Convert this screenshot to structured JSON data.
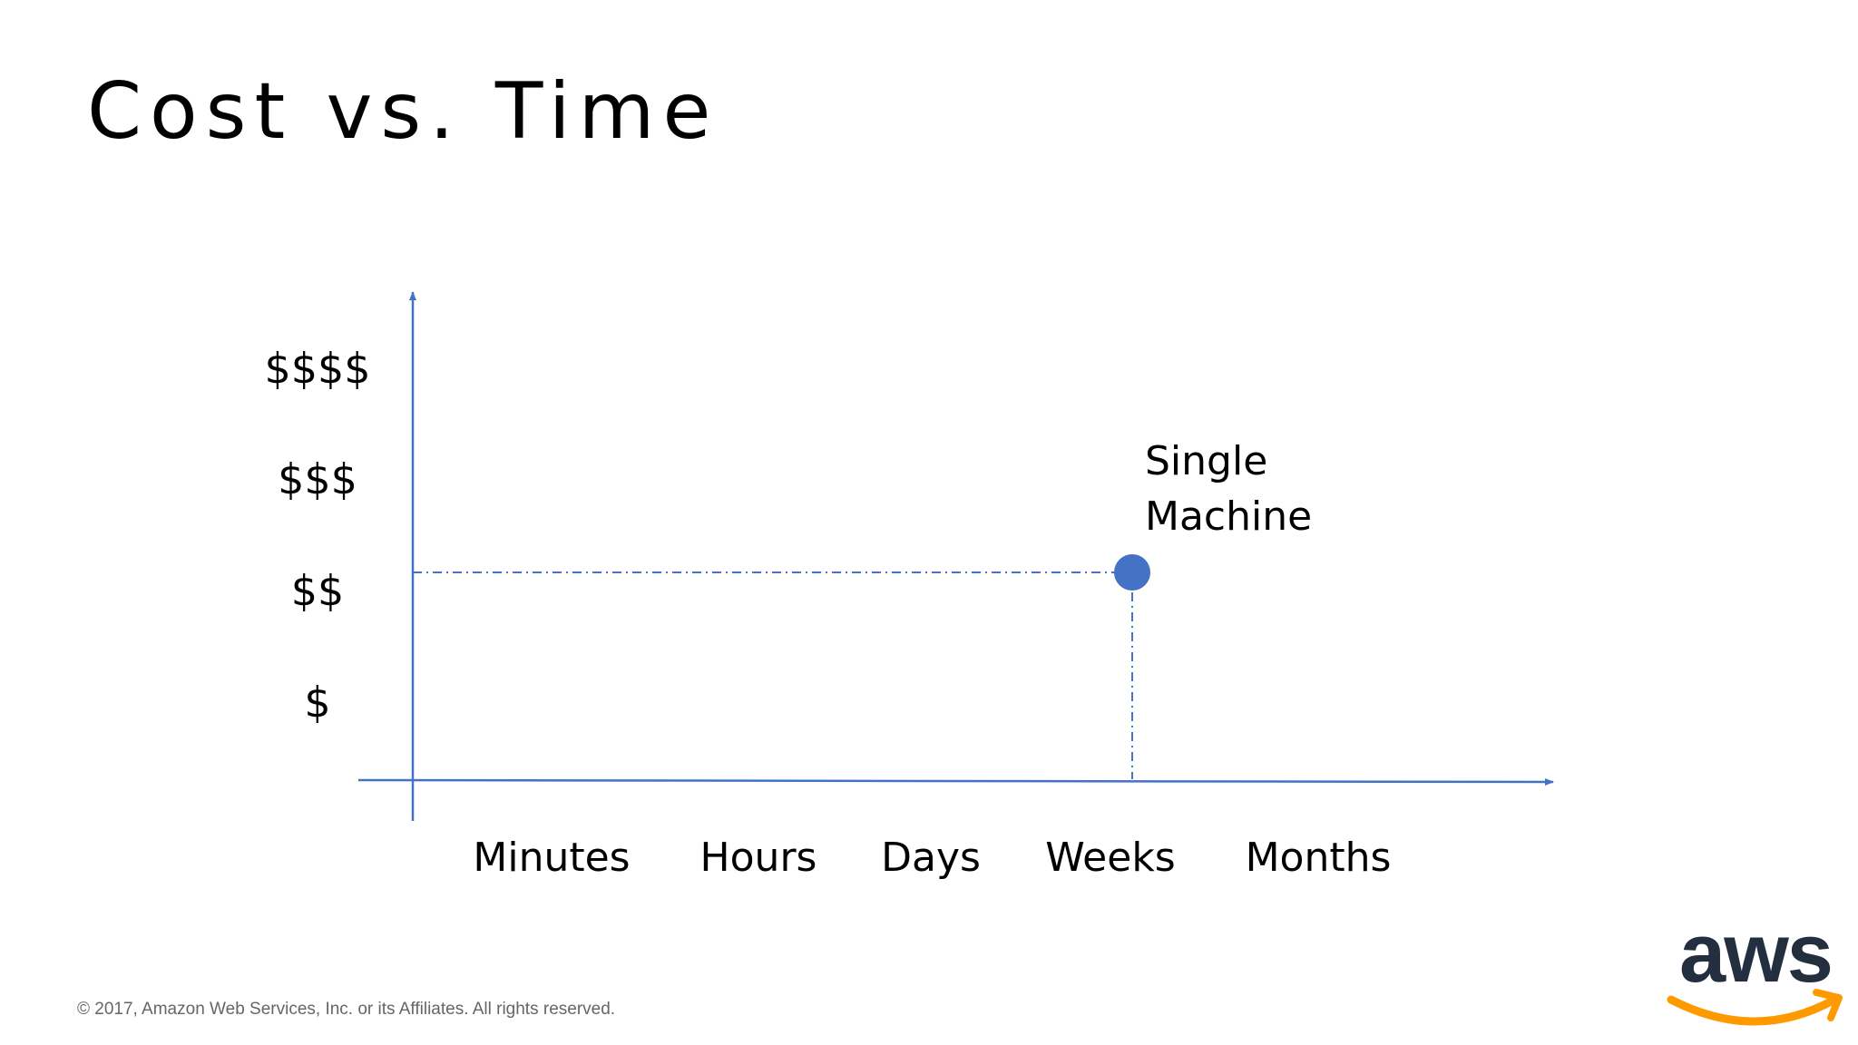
{
  "slide": {
    "title": "Cost vs. Time",
    "footer": "© 2017, Amazon Web Services, Inc. or its Affiliates. All rights reserved.",
    "logo": {
      "text": "aws",
      "text_color": "#232f3e",
      "smile_color": "#ff9900"
    }
  },
  "chart_data": {
    "type": "scatter",
    "title": "Cost vs. Time",
    "categories_x": [
      "Minutes",
      "Hours",
      "Days",
      "Weeks",
      "Months"
    ],
    "categories_y": [
      "$",
      "$$",
      "$$$",
      "$$$$"
    ],
    "points": [
      {
        "x": "Weeks",
        "y": "$$",
        "label": [
          "Single",
          "Machine"
        ],
        "color": "#4472c4",
        "guide_lines": "dash-dot"
      }
    ],
    "axis_color": "#4472c4",
    "grid": false
  }
}
